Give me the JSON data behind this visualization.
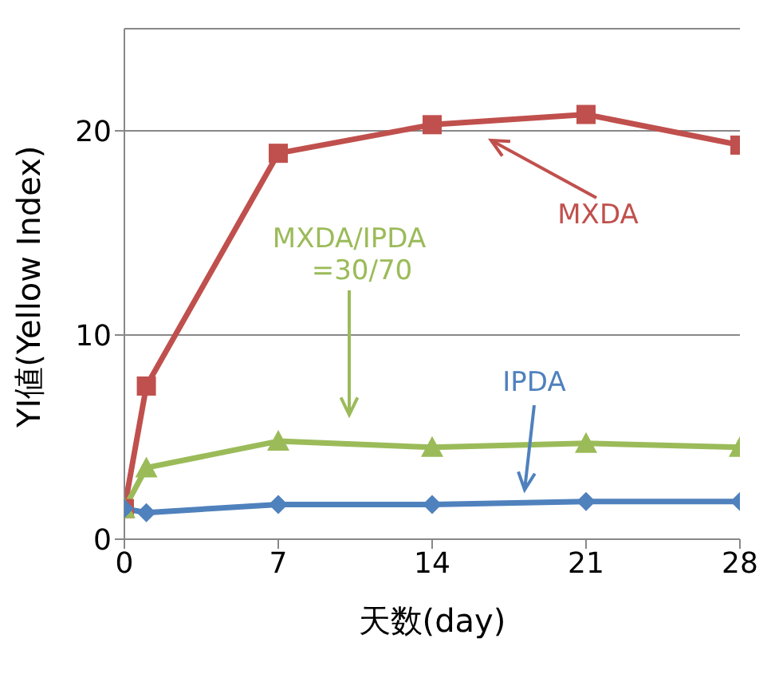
{
  "chart_data": {
    "type": "line",
    "xlabel": "天数(day)",
    "ylabel": "YI値(Yellow Index)",
    "x": [
      0,
      1,
      7,
      14,
      21,
      28
    ],
    "series": [
      {
        "color": "#c0504d",
        "marker": "square",
        "values": [
          1.5,
          7.5,
          18.9,
          20.3,
          20.8,
          19.3
        ]
      },
      {
        "color": "#9bbb59",
        "marker": "triangle",
        "values": [
          1.5,
          3.5,
          4.8,
          4.5,
          4.7,
          4.5
        ]
      },
      {
        "color": "#4f81bd",
        "marker": "diamond",
        "values": [
          1.5,
          1.3,
          1.7,
          1.7,
          1.85,
          1.85
        ]
      }
    ],
    "annotations": [
      "MXDA",
      "MXDA/IPDA\n=30/70",
      "IPDA"
    ],
    "xlim": [
      0,
      28
    ],
    "xticks": [
      0,
      7,
      14,
      21,
      28
    ],
    "ylim": [
      0,
      25
    ],
    "yticks": [
      0,
      10,
      20
    ],
    "grid": "y",
    "line_style": "solid"
  }
}
